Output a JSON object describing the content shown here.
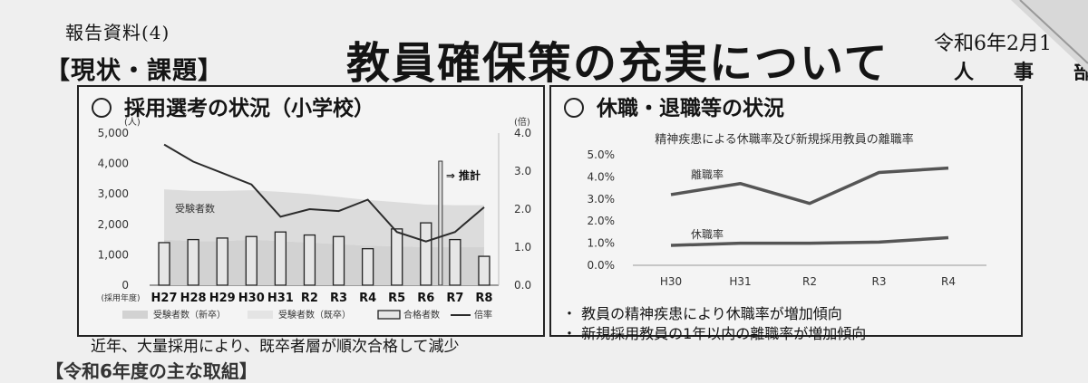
{
  "header": {
    "report_label": "報告資料(4)",
    "section_label": "【現状・課題】",
    "title": "教員確保策の充実について",
    "date": "令和6年2月1",
    "department": "人事部"
  },
  "left_panel": {
    "heading": "採用選考の状況（小学校）",
    "caption": "近年、大量採用により、既卒者層が順次合格して減少"
  },
  "right_panel": {
    "heading": "休職・退職等の状況",
    "bullets": [
      "・ 教員の精神疾患により休職率が増加傾向",
      "・ 新規採用教員の1年以内の離職率が増加傾向"
    ]
  },
  "bottom_cut_text": "【令和6年度の主な取組】",
  "colors": {
    "background": "#efefef",
    "line": "#2b2b2b",
    "series_line": "#555555",
    "area": "#d2d2d2",
    "bar": "#e6e6e6"
  },
  "chart_data": [
    {
      "type": "bar",
      "title": "",
      "xlabel": "(採用年度)",
      "ylabel": "(人)",
      "y2label": "(倍)",
      "categories": [
        "H27",
        "H28",
        "H29",
        "H30",
        "H31",
        "R2",
        "R3",
        "R4",
        "R5",
        "R6",
        "R7",
        "R8"
      ],
      "ylim": [
        0,
        5000
      ],
      "y_ticks": [
        "0",
        "1,000",
        "2,000",
        "3,000",
        "4,000",
        "5,000"
      ],
      "y2lim": [
        0,
        4
      ],
      "y2_ticks": [
        "0.0",
        "1.0",
        "2.0",
        "3.0",
        "4.0"
      ],
      "annotations": [
        "受験者数",
        "⇒ 推計"
      ],
      "legend": [
        "受験者数（新卒）",
        "受験者数（既卒）",
        "合格者数",
        "倍率"
      ],
      "series": [
        {
          "name": "受験者数（新卒）",
          "type": "area",
          "values": [
            1500,
            1450,
            1450,
            1500,
            1450,
            1400,
            1350,
            1300,
            1280,
            1250,
            1250,
            1250
          ]
        },
        {
          "name": "受験者数（既卒）",
          "type": "area",
          "values": [
            1650,
            1650,
            1650,
            1620,
            1620,
            1600,
            1550,
            1500,
            1450,
            1400,
            1380,
            1380
          ]
        },
        {
          "name": "合格者数",
          "type": "bar",
          "values": [
            1400,
            1500,
            1550,
            1600,
            1750,
            1650,
            1600,
            1200,
            1850,
            2050,
            1500,
            950
          ]
        },
        {
          "name": "倍率",
          "type": "line",
          "axis": "y2",
          "values": [
            3.7,
            3.25,
            2.95,
            2.65,
            1.8,
            2.0,
            1.95,
            2.25,
            1.4,
            1.15,
            1.4,
            2.05
          ]
        }
      ]
    },
    {
      "type": "line",
      "title": "精神疾患による休職率及び新規採用教員の離職率",
      "categories": [
        "H30",
        "H31",
        "R2",
        "R3",
        "R4"
      ],
      "ylim": [
        0,
        5
      ],
      "y_ticks": [
        "0.0%",
        "1.0%",
        "2.0%",
        "3.0%",
        "4.0%",
        "5.0%"
      ],
      "series": [
        {
          "name": "離職率",
          "values": [
            3.2,
            3.7,
            2.8,
            4.2,
            4.4
          ]
        },
        {
          "name": "休職率",
          "values": [
            0.9,
            1.0,
            1.0,
            1.05,
            1.25
          ]
        }
      ]
    }
  ]
}
